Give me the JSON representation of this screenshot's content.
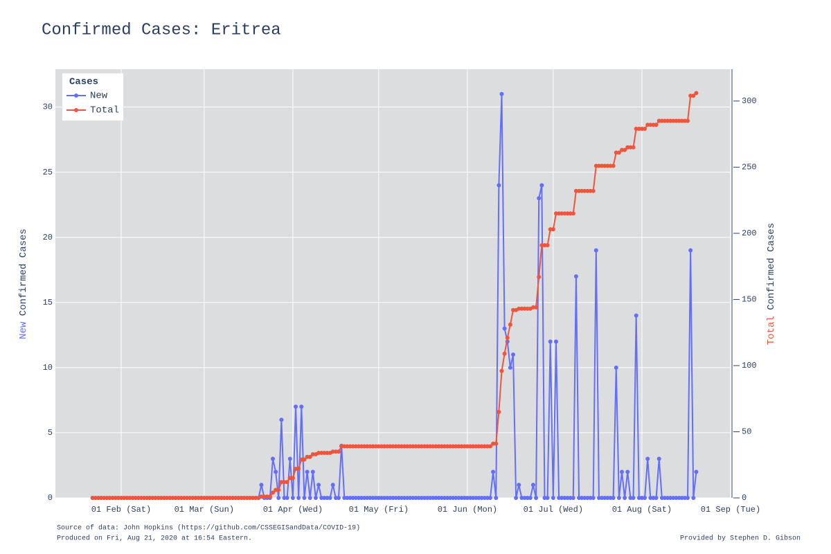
{
  "chart_data": {
    "type": "line",
    "title": "Confirmed Cases: Eritrea",
    "ylabel": "Confirmed Cases",
    "y2label": "Confirmed Cases",
    "legend_title": "Cases",
    "legend": "top-left",
    "grid": true,
    "source": "Source of data: John Hopkins (https://github.com/CSSEGISandData/COVID-19)",
    "produced": "Produced on Fri, Aug 21, 2020 at 16:54 Eastern.",
    "credit": "Provided by Stephen D. Gibson",
    "x": [
      "22 Jan",
      "23 Jan",
      "24 Jan",
      "25 Jan",
      "26 Jan",
      "27 Jan",
      "28 Jan",
      "29 Jan",
      "30 Jan",
      "31 Jan",
      "01 Feb",
      "02 Feb",
      "03 Feb",
      "04 Feb",
      "05 Feb",
      "06 Feb",
      "07 Feb",
      "08 Feb",
      "09 Feb",
      "10 Feb",
      "11 Feb",
      "12 Feb",
      "13 Feb",
      "14 Feb",
      "15 Feb",
      "16 Feb",
      "17 Feb",
      "18 Feb",
      "19 Feb",
      "20 Feb",
      "21 Feb",
      "22 Feb",
      "23 Feb",
      "24 Feb",
      "25 Feb",
      "26 Feb",
      "27 Feb",
      "28 Feb",
      "29 Feb",
      "01 Mar",
      "02 Mar",
      "03 Mar",
      "04 Mar",
      "05 Mar",
      "06 Mar",
      "07 Mar",
      "08 Mar",
      "09 Mar",
      "10 Mar",
      "11 Mar",
      "12 Mar",
      "13 Mar",
      "14 Mar",
      "15 Mar",
      "16 Mar",
      "17 Mar",
      "18 Mar",
      "19 Mar",
      "20 Mar",
      "21 Mar",
      "22 Mar",
      "23 Mar",
      "24 Mar",
      "25 Mar",
      "26 Mar",
      "27 Mar",
      "28 Mar",
      "29 Mar",
      "30 Mar",
      "31 Mar",
      "01 Apr",
      "02 Apr",
      "03 Apr",
      "04 Apr",
      "05 Apr",
      "06 Apr",
      "07 Apr",
      "08 Apr",
      "09 Apr",
      "10 Apr",
      "11 Apr",
      "12 Apr",
      "13 Apr",
      "14 Apr",
      "15 Apr",
      "16 Apr",
      "17 Apr",
      "18 Apr",
      "19 Apr",
      "20 Apr",
      "21 Apr",
      "22 Apr",
      "23 Apr",
      "24 Apr",
      "25 Apr",
      "26 Apr",
      "27 Apr",
      "28 Apr",
      "29 Apr",
      "30 Apr",
      "01 May",
      "02 May",
      "03 May",
      "04 May",
      "05 May",
      "06 May",
      "07 May",
      "08 May",
      "09 May",
      "10 May",
      "11 May",
      "12 May",
      "13 May",
      "14 May",
      "15 May",
      "16 May",
      "17 May",
      "18 May",
      "19 May",
      "20 May",
      "21 May",
      "22 May",
      "23 May",
      "24 May",
      "25 May",
      "26 May",
      "27 May",
      "28 May",
      "29 May",
      "30 May",
      "31 May",
      "01 Jun",
      "02 Jun",
      "03 Jun",
      "04 Jun",
      "05 Jun",
      "06 Jun",
      "07 Jun",
      "08 Jun",
      "09 Jun",
      "10 Jun",
      "11 Jun",
      "12 Jun",
      "13 Jun",
      "14 Jun",
      "15 Jun",
      "16 Jun",
      "17 Jun",
      "18 Jun",
      "19 Jun",
      "20 Jun",
      "21 Jun",
      "22 Jun",
      "23 Jun",
      "24 Jun",
      "25 Jun",
      "26 Jun",
      "27 Jun",
      "28 Jun",
      "29 Jun",
      "30 Jun",
      "01 Jul",
      "02 Jul",
      "03 Jul",
      "04 Jul",
      "05 Jul",
      "06 Jul",
      "07 Jul",
      "08 Jul",
      "09 Jul",
      "10 Jul",
      "11 Jul",
      "12 Jul",
      "13 Jul",
      "14 Jul",
      "15 Jul",
      "16 Jul",
      "17 Jul",
      "18 Jul",
      "19 Jul",
      "20 Jul",
      "21 Jul",
      "22 Jul",
      "23 Jul",
      "24 Jul",
      "25 Jul",
      "26 Jul",
      "27 Jul",
      "28 Jul",
      "29 Jul",
      "30 Jul",
      "31 Jul",
      "01 Aug",
      "02 Aug",
      "03 Aug",
      "04 Aug",
      "05 Aug",
      "06 Aug",
      "07 Aug",
      "08 Aug",
      "09 Aug",
      "10 Aug",
      "11 Aug",
      "12 Aug",
      "13 Aug",
      "14 Aug",
      "15 Aug",
      "16 Aug",
      "17 Aug",
      "18 Aug",
      "19 Aug",
      "20 Aug"
    ],
    "series": [
      {
        "name": "New",
        "color": "#636efa",
        "axis": "y",
        "values": [
          0,
          0,
          0,
          0,
          0,
          0,
          0,
          0,
          0,
          0,
          0,
          0,
          0,
          0,
          0,
          0,
          0,
          0,
          0,
          0,
          0,
          0,
          0,
          0,
          0,
          0,
          0,
          0,
          0,
          0,
          0,
          0,
          0,
          0,
          0,
          0,
          0,
          0,
          0,
          0,
          0,
          0,
          0,
          0,
          0,
          0,
          0,
          0,
          0,
          0,
          0,
          0,
          0,
          0,
          0,
          0,
          0,
          0,
          0,
          1,
          0,
          0,
          0,
          3,
          2,
          0,
          6,
          0,
          0,
          3,
          0,
          7,
          0,
          7,
          0,
          2,
          0,
          2,
          0,
          1,
          0,
          0,
          0,
          0,
          1,
          0,
          0,
          4,
          0,
          0,
          0,
          0,
          0,
          0,
          0,
          0,
          0,
          0,
          0,
          0,
          0,
          0,
          0,
          0,
          0,
          0,
          0,
          0,
          0,
          0,
          0,
          0,
          0,
          0,
          0,
          0,
          0,
          0,
          0,
          0,
          0,
          0,
          0,
          0,
          0,
          0,
          0,
          0,
          0,
          0,
          0,
          0,
          0,
          0,
          0,
          0,
          0,
          0,
          0,
          0,
          2,
          0,
          24,
          31,
          13,
          12,
          10,
          11,
          0,
          1,
          0,
          0,
          0,
          0,
          1,
          0,
          23,
          24,
          0,
          0,
          12,
          0,
          12,
          0,
          0,
          0,
          0,
          0,
          0,
          17,
          0,
          0,
          0,
          0,
          0,
          0,
          19,
          0,
          0,
          0,
          0,
          0,
          0,
          10,
          0,
          2,
          0,
          2,
          0,
          0,
          14,
          0,
          0,
          0,
          3,
          0,
          0,
          0,
          3,
          0,
          0,
          0,
          0,
          0,
          0,
          0,
          0,
          0,
          0,
          19,
          0,
          2
        ]
      },
      {
        "name": "Total",
        "color": "#ef553b",
        "axis": "y2",
        "values": [
          0,
          0,
          0,
          0,
          0,
          0,
          0,
          0,
          0,
          0,
          0,
          0,
          0,
          0,
          0,
          0,
          0,
          0,
          0,
          0,
          0,
          0,
          0,
          0,
          0,
          0,
          0,
          0,
          0,
          0,
          0,
          0,
          0,
          0,
          0,
          0,
          0,
          0,
          0,
          0,
          0,
          0,
          0,
          0,
          0,
          0,
          0,
          0,
          0,
          0,
          0,
          0,
          0,
          0,
          0,
          0,
          0,
          0,
          0,
          1,
          1,
          1,
          1,
          4,
          6,
          6,
          12,
          12,
          12,
          15,
          15,
          22,
          22,
          29,
          29,
          31,
          31,
          33,
          33,
          34,
          34,
          34,
          34,
          34,
          35,
          35,
          35,
          39,
          39,
          39,
          39,
          39,
          39,
          39,
          39,
          39,
          39,
          39,
          39,
          39,
          39,
          39,
          39,
          39,
          39,
          39,
          39,
          39,
          39,
          39,
          39,
          39,
          39,
          39,
          39,
          39,
          39,
          39,
          39,
          39,
          39,
          39,
          39,
          39,
          39,
          39,
          39,
          39,
          39,
          39,
          39,
          39,
          39,
          39,
          39,
          39,
          39,
          39,
          39,
          39,
          41,
          41,
          65,
          96,
          109,
          121,
          131,
          142,
          142,
          143,
          143,
          143,
          143,
          143,
          144,
          144,
          167,
          191,
          191,
          191,
          203,
          203,
          215,
          215,
          215,
          215,
          215,
          215,
          215,
          232,
          232,
          232,
          232,
          232,
          232,
          232,
          251,
          251,
          251,
          251,
          251,
          251,
          251,
          261,
          261,
          263,
          263,
          265,
          265,
          265,
          279,
          279,
          279,
          279,
          282,
          282,
          282,
          282,
          285,
          285,
          285,
          285,
          285,
          285,
          285,
          285,
          285,
          285,
          285,
          304,
          304,
          306
        ]
      }
    ],
    "xlim": [
      "09 Jan",
      "01 Sep"
    ],
    "xticks": [
      {
        "value": "01 Feb",
        "label": "01 Feb (Sat)"
      },
      {
        "value": "01 Mar",
        "label": "01 Mar (Sun)"
      },
      {
        "value": "01 Apr",
        "label": "01 Apr (Wed)"
      },
      {
        "value": "01 May",
        "label": "01 May (Fri)"
      },
      {
        "value": "01 Jun",
        "label": "01 Jun (Mon)"
      },
      {
        "value": "01 Jul",
        "label": "01 Jul (Wed)"
      },
      {
        "value": "01 Aug",
        "label": "01 Aug (Sat)"
      },
      {
        "value": "01 Sep",
        "label": "01 Sep (Tue)"
      }
    ],
    "ylim": [
      0,
      32.9
    ],
    "yticks": [
      0,
      5,
      10,
      15,
      20,
      25,
      30
    ],
    "y2lim": [
      0,
      324
    ],
    "y2ticks": [
      0,
      50,
      100,
      150,
      200,
      250,
      300
    ]
  }
}
